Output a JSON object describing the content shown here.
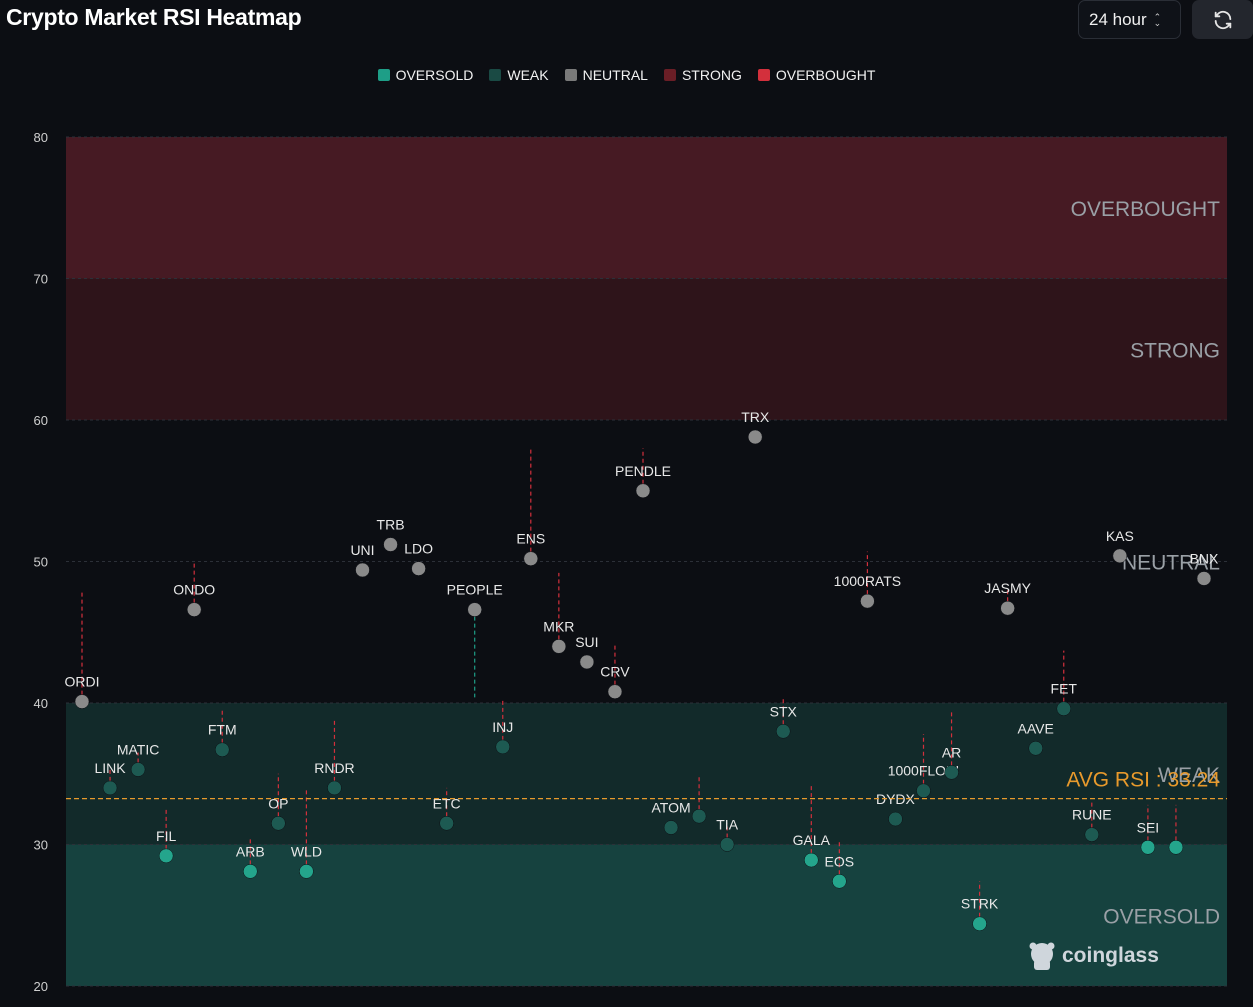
{
  "header": {
    "title": "Crypto Market RSI Heatmap",
    "timeframe": "24 hour",
    "refresh_icon": "refresh-icon"
  },
  "legend": [
    {
      "label": "OVERSOLD",
      "color": "#1e9e87"
    },
    {
      "label": "WEAK",
      "color": "#1a4a44"
    },
    {
      "label": "NEUTRAL",
      "color": "#7a7a7a"
    },
    {
      "label": "STRONG",
      "color": "#6a1e26"
    },
    {
      "label": "OVERBOUGHT",
      "color": "#d3303c"
    }
  ],
  "watermark": "coinglass",
  "chart_data": {
    "type": "scatter",
    "title": "Crypto Market RSI Heatmap",
    "ylim": [
      20,
      80
    ],
    "yticks": [
      20,
      30,
      40,
      50,
      60,
      70,
      80
    ],
    "zones": [
      {
        "name": "OVERSOLD",
        "from": 20,
        "to": 30,
        "color": "#16423f"
      },
      {
        "name": "WEAK",
        "from": 30,
        "to": 40,
        "color": "#122a2a"
      },
      {
        "name": "NEUTRAL",
        "from": 40,
        "to": 60,
        "color": "#0c0e13"
      },
      {
        "name": "STRONG",
        "from": 60,
        "to": 70,
        "color": "#2e141a"
      },
      {
        "name": "OVERBOUGHT",
        "from": 70,
        "to": 80,
        "color": "#461a23"
      }
    ],
    "avg_label": "AVG RSI : 33.24",
    "avg_rsi": 33.24,
    "points": [
      {
        "label": "ORDI",
        "rsi": 40.1,
        "prev": 48.0
      },
      {
        "label": "LINK",
        "rsi": 34.0,
        "prev": 35.5
      },
      {
        "label": "MATIC",
        "rsi": 35.3,
        "prev": 36.5
      },
      {
        "label": "FIL",
        "rsi": 29.2,
        "prev": 32.5
      },
      {
        "label": "ONDO",
        "rsi": 46.6,
        "prev": 50.0
      },
      {
        "label": "FTM",
        "rsi": 36.7,
        "prev": 39.5
      },
      {
        "label": "ARB",
        "rsi": 28.1,
        "prev": 30.5
      },
      {
        "label": "OP",
        "rsi": 31.5,
        "prev": 35.0
      },
      {
        "label": "WLD",
        "rsi": 28.1,
        "prev": 34.0
      },
      {
        "label": "RNDR",
        "rsi": 34.0,
        "prev": 38.8
      },
      {
        "label": "UNI",
        "rsi": 49.4,
        "prev": 49.4
      },
      {
        "label": "TRB",
        "rsi": 51.2,
        "prev": 51.2
      },
      {
        "label": "LDO",
        "rsi": 49.5,
        "prev": 49.5
      },
      {
        "label": "ETC",
        "rsi": 31.5,
        "prev": 34.0
      },
      {
        "label": "PEOPLE",
        "rsi": 46.6,
        "prev": 40.4
      },
      {
        "label": "INJ",
        "rsi": 36.9,
        "prev": 40.2
      },
      {
        "label": "ENS",
        "rsi": 50.2,
        "prev": 58.0
      },
      {
        "label": "MKR",
        "rsi": 44.0,
        "prev": 49.2
      },
      {
        "label": "SUI",
        "rsi": 42.9,
        "prev": 42.9
      },
      {
        "label": "CRV",
        "rsi": 40.8,
        "prev": 44.2
      },
      {
        "label": "PENDLE",
        "rsi": 55.0,
        "prev": 58.0
      },
      {
        "label": "ATOM",
        "rsi": 31.2,
        "prev": 31.2
      },
      {
        "label": "",
        "rsi": 32.0,
        "prev": 34.8
      },
      {
        "label": "TIA",
        "rsi": 30.0,
        "prev": 31.5
      },
      {
        "label": "TRX",
        "rsi": 58.8,
        "prev": 58.8
      },
      {
        "label": "STX",
        "rsi": 38.0,
        "prev": 40.4
      },
      {
        "label": "GALA",
        "rsi": 28.9,
        "prev": 34.3
      },
      {
        "label": "EOS",
        "rsi": 27.4,
        "prev": 30.3
      },
      {
        "label": "1000RATS",
        "rsi": 47.2,
        "prev": 50.7
      },
      {
        "label": "DYDX",
        "rsi": 31.8,
        "prev": 31.8
      },
      {
        "label": "1000FLOKI",
        "rsi": 33.8,
        "prev": 37.8
      },
      {
        "label": "AR",
        "rsi": 35.1,
        "prev": 39.5
      },
      {
        "label": "STRK",
        "rsi": 24.4,
        "prev": 27.4
      },
      {
        "label": "JASMY",
        "rsi": 46.7,
        "prev": 48.1
      },
      {
        "label": "AAVE",
        "rsi": 36.8,
        "prev": 36.8
      },
      {
        "label": "FET",
        "rsi": 39.6,
        "prev": 43.7
      },
      {
        "label": "RUNE",
        "rsi": 30.7,
        "prev": 33.0
      },
      {
        "label": "KAS",
        "rsi": 50.4,
        "prev": 50.4
      },
      {
        "label": "SEI",
        "rsi": 29.8,
        "prev": 32.8
      },
      {
        "label": "",
        "rsi": 29.8,
        "prev": 32.8
      },
      {
        "label": "BNX",
        "rsi": 48.8,
        "prev": 48.8
      }
    ]
  }
}
